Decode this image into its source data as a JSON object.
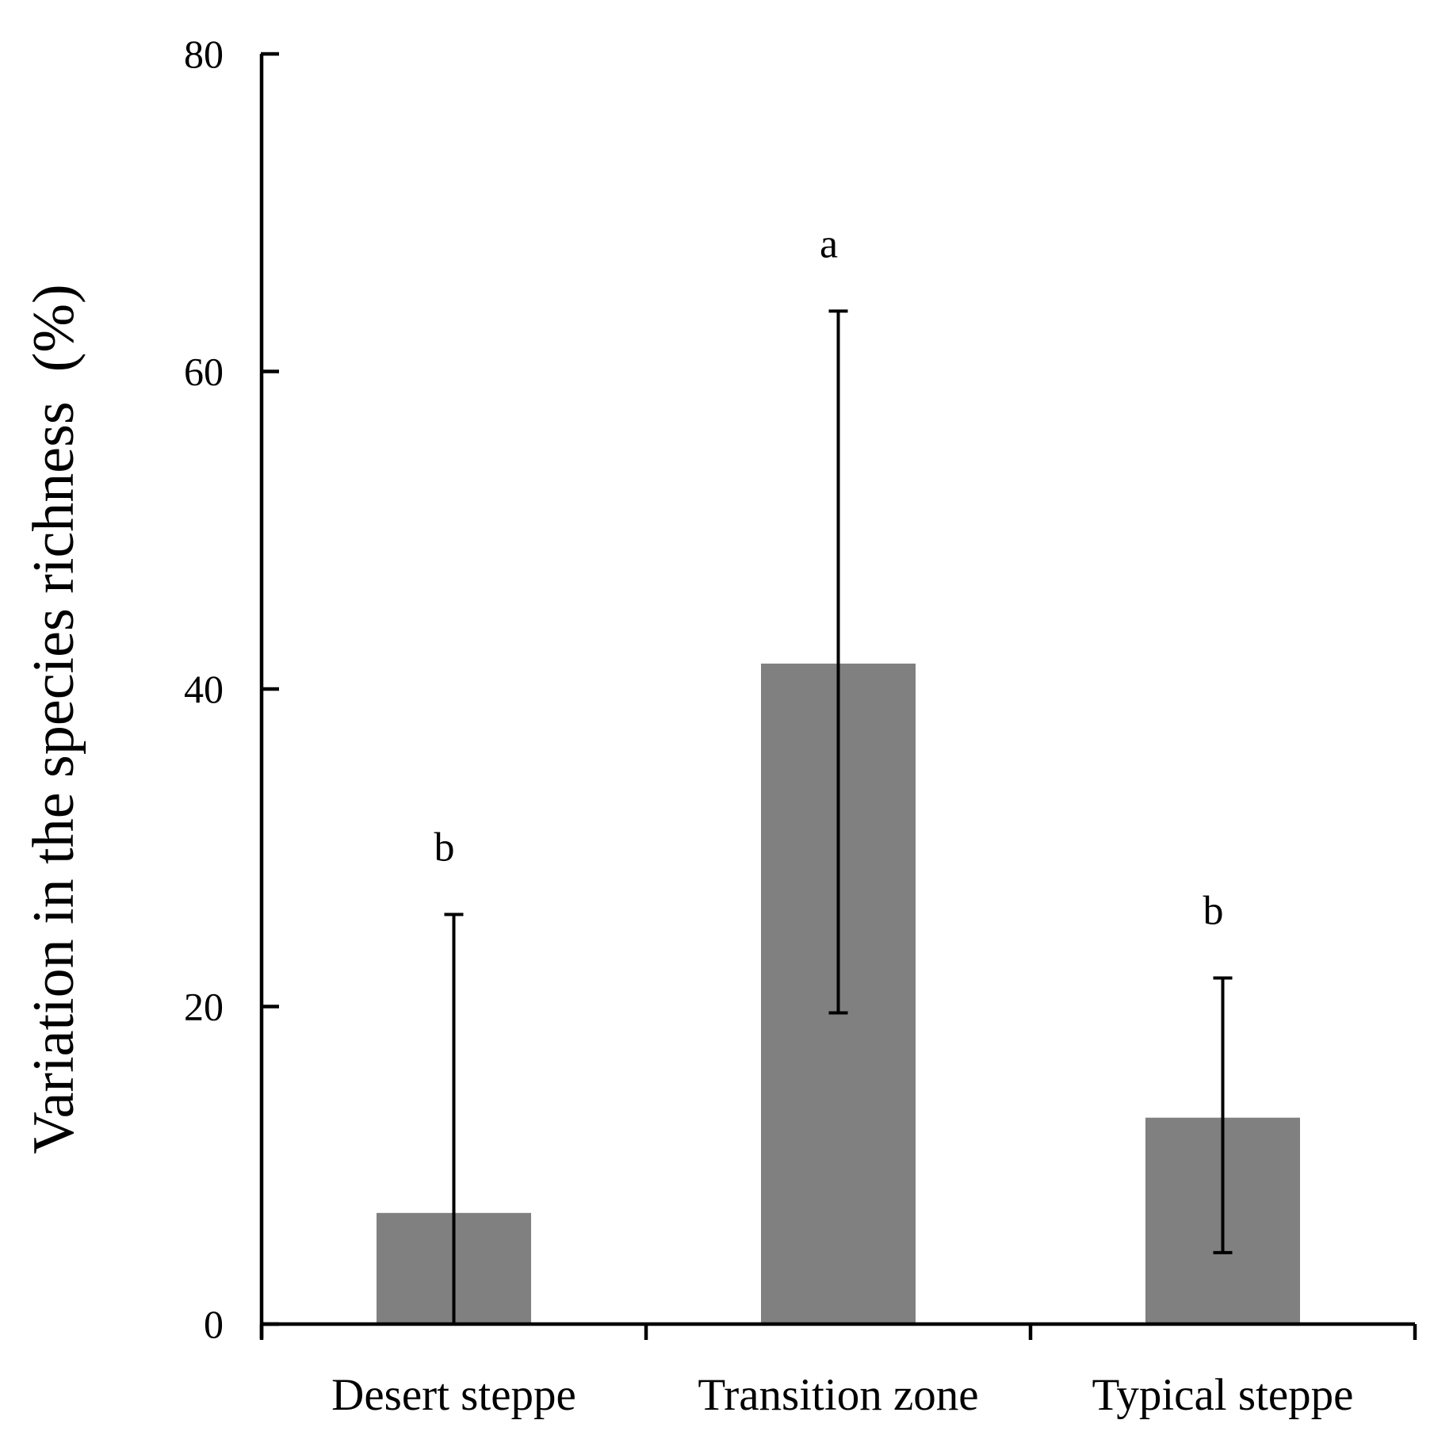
{
  "chart_data": {
    "type": "bar",
    "title": "",
    "xlabel": "",
    "ylabel": "Variation in the species richness  (%)",
    "ylim": [
      0,
      80
    ],
    "yticks": [
      0,
      20,
      40,
      60,
      80
    ],
    "grid": false,
    "legend": "none",
    "categories": [
      "Desert steppe",
      "Transition zone",
      "Typical steppe"
    ],
    "values": [
      7,
      41.6,
      13
    ],
    "error_upper": [
      25.8,
      63.8,
      21.8
    ],
    "error_lower": [
      0,
      19.6,
      4.5
    ],
    "significance": [
      "b",
      "a",
      "b"
    ],
    "colors": {
      "bar": "#808080",
      "axis": "#000000",
      "text": "#000000"
    }
  }
}
